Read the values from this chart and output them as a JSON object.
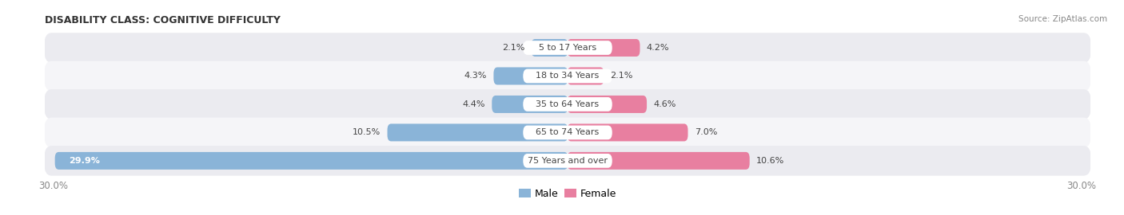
{
  "title": "DISABILITY CLASS: COGNITIVE DIFFICULTY",
  "source": "Source: ZipAtlas.com",
  "categories": [
    "5 to 17 Years",
    "18 to 34 Years",
    "35 to 64 Years",
    "65 to 74 Years",
    "75 Years and over"
  ],
  "male_values": [
    2.1,
    4.3,
    4.4,
    10.5,
    29.9
  ],
  "female_values": [
    4.2,
    2.1,
    4.6,
    7.0,
    10.6
  ],
  "max_val": 30.0,
  "male_color": "#8ab4d8",
  "female_color": "#e87fa0",
  "row_bg_even": "#ebebf0",
  "row_bg_odd": "#f5f5f8",
  "text_color": "#444444",
  "title_color": "#333333",
  "axis_label_color": "#888888",
  "legend_male_color": "#8ab4d8",
  "legend_female_color": "#e87fa0"
}
